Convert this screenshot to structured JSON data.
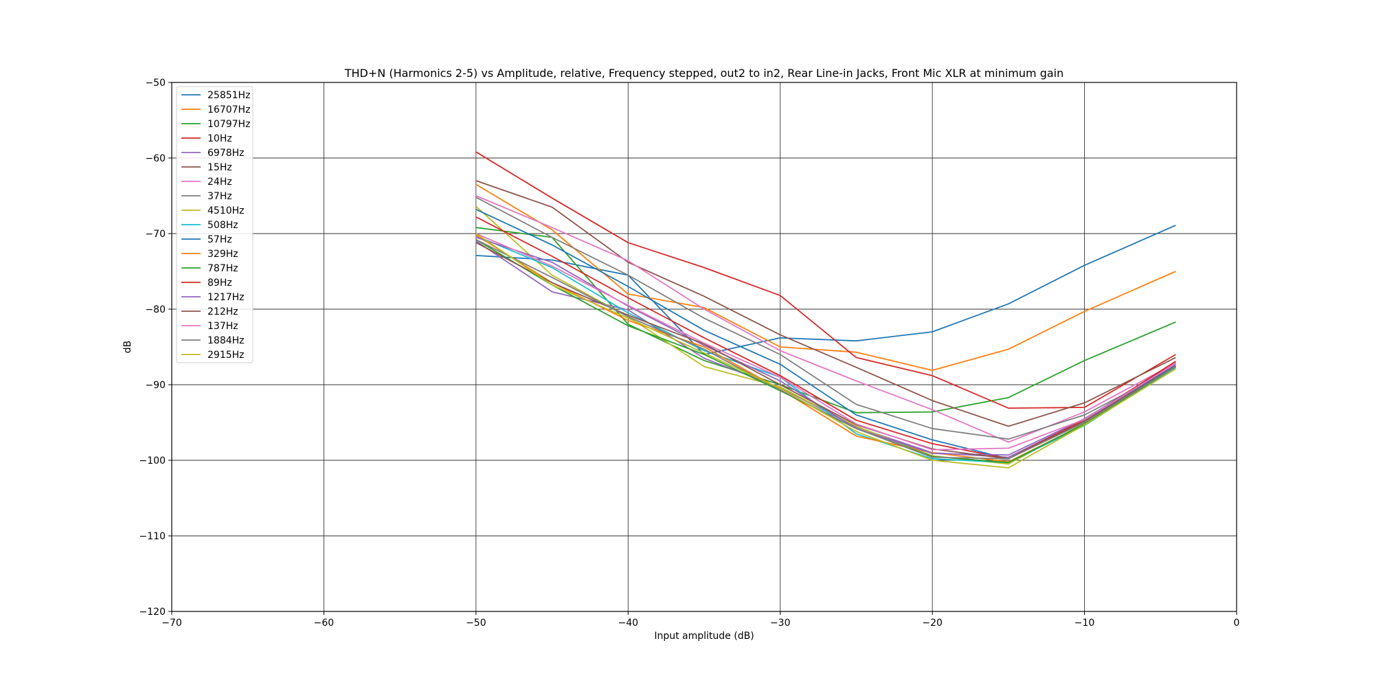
{
  "chart_data": {
    "type": "line",
    "title": "THD+N (Harmonics 2-5) vs Amplitude, relative, Frequency stepped, out2 to in2, Rear Line-in Jacks, Front Mic XLR at minimum gain",
    "xlabel": "Input amplitude (dB)",
    "ylabel": "dB",
    "xlim": [
      -70,
      0
    ],
    "ylim": [
      -120,
      -50
    ],
    "xticks": [
      -70,
      -60,
      -50,
      -40,
      -30,
      -20,
      -10,
      0
    ],
    "yticks": [
      -50,
      -60,
      -70,
      -80,
      -90,
      -100,
      -110,
      -120
    ],
    "xtick_labels": [
      "−70",
      "−60",
      "−50",
      "−40",
      "−30",
      "−20",
      "−10",
      "0"
    ],
    "ytick_labels": [
      "−50",
      "−60",
      "−70",
      "−80",
      "−90",
      "−100",
      "−110",
      "−120"
    ],
    "grid": true,
    "legend_position": "top-left",
    "x": [
      -50,
      -45,
      -40,
      -35,
      -30,
      -25,
      -20,
      -15,
      -10,
      -4
    ],
    "series": [
      {
        "name": "25851Hz",
        "color": "#1f77b4",
        "values": [
          -72.9,
          -73.5,
          -75.5,
          -86.0,
          -83.8,
          -84.2,
          -83.0,
          -79.3,
          -74.2,
          -68.9
        ]
      },
      {
        "name": "16707Hz",
        "color": "#ff7f0e",
        "values": [
          -63.5,
          -69.5,
          -78.0,
          -79.8,
          -85.0,
          -85.7,
          -88.1,
          -85.3,
          -80.3,
          -75.0
        ]
      },
      {
        "name": "10797Hz",
        "color": "#2ca02c",
        "values": [
          -69.2,
          -70.5,
          -82.0,
          -86.8,
          -90.0,
          -93.7,
          -93.6,
          -91.7,
          -86.8,
          -81.7
        ]
      },
      {
        "name": "10Hz",
        "color": "#d62728",
        "values": [
          -59.2,
          -65.3,
          -71.2,
          -74.5,
          -78.2,
          -86.4,
          -88.8,
          -93.1,
          -93.0,
          -86.0
        ]
      },
      {
        "name": "6978Hz",
        "color": "#9467bd",
        "values": [
          -71.0,
          -77.7,
          -80.1,
          -86.5,
          -90.4,
          -95.6,
          -99.0,
          -99.6,
          -94.6,
          -87.0
        ]
      },
      {
        "name": "15Hz",
        "color": "#8c564b",
        "values": [
          -63.0,
          -66.5,
          -73.8,
          -78.3,
          -83.4,
          -87.7,
          -92.1,
          -95.5,
          -92.4,
          -86.4
        ]
      },
      {
        "name": "24Hz",
        "color": "#e377c2",
        "values": [
          -65.0,
          -69.2,
          -73.6,
          -80.0,
          -85.5,
          -89.5,
          -93.3,
          -97.6,
          -93.6,
          -87.1
        ]
      },
      {
        "name": "37Hz",
        "color": "#7f7f7f",
        "values": [
          -65.2,
          -70.5,
          -75.5,
          -81.2,
          -86.0,
          -92.6,
          -95.8,
          -97.2,
          -94.0,
          -87.7
        ]
      },
      {
        "name": "4510Hz",
        "color": "#bcbd22",
        "values": [
          -66.4,
          -75.5,
          -81.0,
          -87.6,
          -90.3,
          -95.5,
          -99.4,
          -100.5,
          -95.1,
          -87.9
        ]
      },
      {
        "name": "508Hz",
        "color": "#17becf",
        "values": [
          -70.3,
          -74.5,
          -80.5,
          -85.5,
          -89.0,
          -96.5,
          -99.8,
          -100.3,
          -95.4,
          -87.7
        ]
      },
      {
        "name": "57Hz",
        "color": "#1f77b4",
        "values": [
          -66.8,
          -71.5,
          -77.0,
          -82.8,
          -87.3,
          -94.0,
          -97.3,
          -99.8,
          -94.8,
          -87.3
        ]
      },
      {
        "name": "329Hz",
        "color": "#ff7f0e",
        "values": [
          -70.2,
          -76.5,
          -81.5,
          -85.0,
          -90.6,
          -96.8,
          -99.0,
          -100.2,
          -95.2,
          -87.5
        ]
      },
      {
        "name": "787Hz",
        "color": "#2ca02c",
        "values": [
          -70.8,
          -76.8,
          -82.2,
          -86.0,
          -90.8,
          -95.8,
          -99.5,
          -100.3,
          -95.2,
          -87.6
        ]
      },
      {
        "name": "89Hz",
        "color": "#d62728",
        "values": [
          -67.8,
          -73.0,
          -78.5,
          -83.8,
          -88.8,
          -94.7,
          -97.8,
          -99.8,
          -94.6,
          -86.9
        ]
      },
      {
        "name": "1217Hz",
        "color": "#9467bd",
        "values": [
          -70.5,
          -73.8,
          -79.6,
          -84.8,
          -89.5,
          -95.8,
          -99.1,
          -99.3,
          -94.5,
          -87.2
        ]
      },
      {
        "name": "212Hz",
        "color": "#8c564b",
        "values": [
          -71.2,
          -76.5,
          -80.8,
          -84.6,
          -90.0,
          -95.3,
          -98.5,
          -99.8,
          -94.8,
          -87.5
        ]
      },
      {
        "name": "137Hz",
        "color": "#e377c2",
        "values": [
          -70.0,
          -74.3,
          -79.5,
          -84.5,
          -89.0,
          -95.2,
          -98.6,
          -98.4,
          -94.6,
          -87.2
        ]
      },
      {
        "name": "1884Hz",
        "color": "#7f7f7f",
        "values": [
          -70.8,
          -75.8,
          -81.0,
          -85.3,
          -90.7,
          -95.8,
          -99.6,
          -99.8,
          -95.0,
          -87.6
        ]
      },
      {
        "name": "2915Hz",
        "color": "#bcbd22",
        "values": [
          -70.0,
          -76.8,
          -81.2,
          -85.8,
          -90.5,
          -96.2,
          -100.0,
          -101.0,
          -95.3,
          -87.9
        ]
      }
    ]
  }
}
